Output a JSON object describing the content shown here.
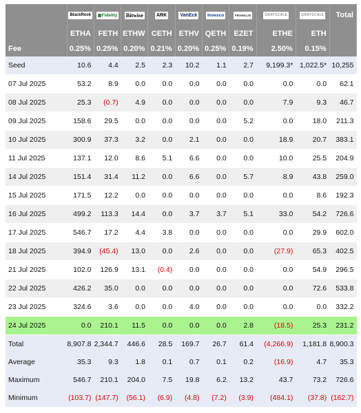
{
  "header": {
    "logos": [
      {
        "issuer": "BlackRock",
        "icon": "blackrock-logo"
      },
      {
        "issuer": "Fidelity",
        "icon": "fidelity-logo"
      },
      {
        "issuer": "Bitwise",
        "icon": "bitwise-logo"
      },
      {
        "issuer": "ARK",
        "icon": "ark-logo"
      },
      {
        "issuer": "VanEck",
        "icon": "vaneck-logo"
      },
      {
        "issuer": "Invesco",
        "icon": "invesco-logo"
      },
      {
        "issuer": "FRANKLIN",
        "icon": "franklin-logo"
      },
      {
        "issuer": "GRAYSCALE",
        "icon": "grayscale-logo"
      },
      {
        "issuer": "GRAYSCALE",
        "icon": "grayscale-mini-logo"
      }
    ],
    "total_label": "Total",
    "tickers": [
      "ETHA",
      "FETH",
      "ETHW",
      "CETH",
      "ETHV",
      "QETH",
      "EZET",
      "ETHE",
      "ETH"
    ],
    "fee_label": "Fee",
    "fees": [
      "0.25%",
      "0.25%",
      "0.20%",
      "0.21%",
      "0.20%",
      "0.25%",
      "0.19%",
      "2.50%",
      "0.15%"
    ]
  },
  "rows": [
    {
      "label": "Seed",
      "values": [
        "10.6",
        "4.4",
        "2.5",
        "2.3",
        "10.2",
        "1.1",
        "2.7",
        "9,199.3*",
        "1,022.5*",
        "10,255"
      ],
      "style": "seed"
    },
    {
      "label": "07 Jul 2025",
      "values": [
        "53.2",
        "8.9",
        "0.0",
        "0.0",
        "0.0",
        "0.0",
        "0.0",
        "0.0",
        "0.0",
        "62.1"
      ],
      "style": "normal"
    },
    {
      "label": "08 Jul 2025",
      "values": [
        "25.3",
        "(0.7)",
        "4.9",
        "0.0",
        "0.0",
        "0.0",
        "0.0",
        "7.9",
        "9.3",
        "46.7"
      ],
      "style": "alt"
    },
    {
      "label": "09 Jul 2025",
      "values": [
        "158.6",
        "29.5",
        "0.0",
        "0.0",
        "0.0",
        "0.0",
        "5.2",
        "0.0",
        "18.0",
        "211.3"
      ],
      "style": "normal"
    },
    {
      "label": "10 Jul 2025",
      "values": [
        "300.9",
        "37.3",
        "3.2",
        "0.0",
        "2.1",
        "0.0",
        "0.0",
        "18.9",
        "20.7",
        "383.1"
      ],
      "style": "alt"
    },
    {
      "label": "11 Jul 2025",
      "values": [
        "137.1",
        "12.0",
        "8.6",
        "5.1",
        "6.6",
        "0.0",
        "0.0",
        "10.0",
        "25.5",
        "204.9"
      ],
      "style": "normal"
    },
    {
      "label": "14 Jul 2025",
      "values": [
        "151.4",
        "31.4",
        "11.2",
        "0.0",
        "6.6",
        "0.0",
        "5.7",
        "8.9",
        "43.8",
        "259.0"
      ],
      "style": "alt"
    },
    {
      "label": "15 Jul 2025",
      "values": [
        "171.5",
        "12.2",
        "0.0",
        "0.0",
        "0.0",
        "0.0",
        "0.0",
        "0.0",
        "8.6",
        "192.3"
      ],
      "style": "normal"
    },
    {
      "label": "16 Jul 2025",
      "values": [
        "499.2",
        "113.3",
        "14.4",
        "0.0",
        "3.7",
        "3.7",
        "5.1",
        "33.0",
        "54.2",
        "726.6"
      ],
      "style": "alt"
    },
    {
      "label": "17 Jul 2025",
      "values": [
        "546.7",
        "17.2",
        "4.4",
        "3.8",
        "0.0",
        "0.0",
        "0.0",
        "0.0",
        "29.9",
        "602.0"
      ],
      "style": "normal"
    },
    {
      "label": "18 Jul 2025",
      "values": [
        "394.9",
        "(45.4)",
        "13.0",
        "0.0",
        "2.6",
        "0.0",
        "0.0",
        "(27.9)",
        "65.3",
        "402.5"
      ],
      "style": "alt"
    },
    {
      "label": "21 Jul 2025",
      "values": [
        "102.0",
        "126.9",
        "13.1",
        "(0.4)",
        "0.0",
        "0.0",
        "0.0",
        "0.0",
        "54.9",
        "296.5"
      ],
      "style": "normal"
    },
    {
      "label": "22 Jul 2025",
      "values": [
        "426.2",
        "35.0",
        "0.0",
        "0.0",
        "0.0",
        "0.0",
        "0.0",
        "0.0",
        "72.6",
        "533.8"
      ],
      "style": "alt"
    },
    {
      "label": "23 Jul 2025",
      "values": [
        "324.6",
        "3.6",
        "0.0",
        "0.0",
        "4.0",
        "0.0",
        "0.0",
        "0.0",
        "0.0",
        "332.2"
      ],
      "style": "normal"
    },
    {
      "label": "24 Jul 2025",
      "values": [
        "0.0",
        "210.1",
        "11.5",
        "0.0",
        "0.0",
        "0.0",
        "2.8",
        "(18.5)",
        "25.3",
        "231.2"
      ],
      "style": "hl"
    }
  ],
  "summary": [
    {
      "label": "Total",
      "values": [
        "8,907.8",
        "2,344.7",
        "446.6",
        "28.5",
        "169.7",
        "26.7",
        "61.4",
        "(4,266.9)",
        "1,181.8",
        "8,900.3"
      ]
    },
    {
      "label": "Average",
      "values": [
        "35.3",
        "9.3",
        "1.8",
        "0.1",
        "0.7",
        "0.1",
        "0.2",
        "(16.9)",
        "4.7",
        "35.3"
      ]
    },
    {
      "label": "Maximum",
      "values": [
        "546.7",
        "210.1",
        "204.0",
        "7.5",
        "19.8",
        "6.2",
        "13.2",
        "43.7",
        "73.2",
        "726.6"
      ]
    },
    {
      "label": "Minimum",
      "values": [
        "(103.7)",
        "(147.7)",
        "(56.1)",
        "(6.9)",
        "(4.8)",
        "(7.2)",
        "(3.9)",
        "(484.1)",
        "(37.8)",
        "(162.7)"
      ]
    }
  ],
  "colors": {
    "header_bg": "#8f8f8f",
    "seed_bg": "#e6ebf5",
    "alt_bg": "#efefef",
    "highlight_bg": "#a9f48f",
    "negative": "#e00000"
  }
}
